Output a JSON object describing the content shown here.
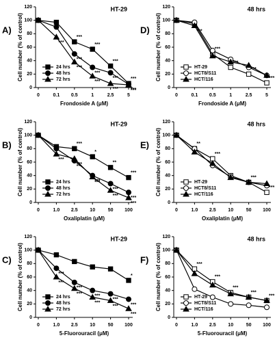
{
  "chart_data": [
    {
      "type": "line",
      "panel_label": "A)",
      "title": "HT-29",
      "x_label": "Frondoside A (μM)",
      "y_label": "Cell number (% of control)",
      "categories": [
        "0",
        "0.1",
        "0.5",
        "1",
        "2.5",
        "5"
      ],
      "ylim": [
        0,
        120
      ],
      "yticks": [
        0,
        20,
        40,
        60,
        80,
        100,
        120
      ],
      "legend": "lower left",
      "series": [
        {
          "name": "24 hrs",
          "color": "#000000",
          "marker": "square",
          "filled": true,
          "values": [
            100,
            97,
            68,
            57,
            32,
            6
          ],
          "significance": [
            null,
            null,
            "***",
            "***",
            "***",
            "***"
          ]
        },
        {
          "name": "48 hrs",
          "color": "#000000",
          "marker": "circle",
          "filled": true,
          "values": [
            100,
            90,
            50,
            30,
            22,
            5
          ],
          "significance": [
            null,
            null,
            "***",
            "***",
            "***",
            "***"
          ]
        },
        {
          "name": "72 hrs",
          "color": "#000000",
          "marker": "triangle",
          "filled": true,
          "values": [
            100,
            75,
            38,
            17,
            6,
            4
          ],
          "significance": [
            null,
            "***",
            "***",
            "***",
            "***",
            "***"
          ]
        }
      ]
    },
    {
      "type": "line",
      "panel_label": "D)",
      "title": "48 hrs",
      "x_label": "Frondoside A (μM)",
      "y_label": "Cell number (% of control)",
      "categories": [
        "0",
        "0.1",
        "0.5",
        "1",
        "2.5",
        "5"
      ],
      "ylim": [
        0,
        120
      ],
      "yticks": [
        0,
        20,
        40,
        60,
        80,
        100,
        120
      ],
      "legend": "lower left",
      "series": [
        {
          "name": "HT-29",
          "color": "#000000",
          "marker": "square",
          "filled": false,
          "values": [
            100,
            95,
            50,
            30,
            20,
            7
          ],
          "significance": [
            null,
            null,
            "***",
            "***",
            "***",
            "***"
          ]
        },
        {
          "name": "HCT8/S11",
          "color": "#000000",
          "marker": "circle",
          "filled": false,
          "values": [
            100,
            97,
            55,
            42,
            30,
            18
          ],
          "significance": [
            null,
            null,
            null,
            null,
            null,
            null
          ]
        },
        {
          "name": "HCT/116",
          "color": "#000000",
          "marker": "triangle",
          "filled": true,
          "values": [
            100,
            92,
            47,
            38,
            33,
            18
          ],
          "significance": [
            null,
            "***",
            null,
            null,
            null,
            null
          ]
        }
      ]
    },
    {
      "type": "line",
      "panel_label": "B)",
      "title": "HT-29",
      "x_label": "Oxaliplatin (μM)",
      "y_label": "Cell number (% of control)",
      "categories": [
        "0",
        "1.0",
        "2.5",
        "10",
        "50",
        "100"
      ],
      "ylim": [
        0,
        120
      ],
      "yticks": [
        0,
        20,
        40,
        60,
        80,
        100,
        120
      ],
      "legend": "lower left",
      "series": [
        {
          "name": "24 hrs",
          "color": "#000000",
          "marker": "square",
          "filled": true,
          "values": [
            100,
            83,
            80,
            68,
            52,
            37
          ],
          "significance": [
            null,
            null,
            "***",
            "*",
            "**",
            "***"
          ]
        },
        {
          "name": "48 hrs",
          "color": "#000000",
          "marker": "circle",
          "filled": true,
          "values": [
            100,
            80,
            62,
            40,
            28,
            15
          ],
          "significance": [
            null,
            null,
            "**",
            "***",
            "***",
            "***"
          ]
        },
        {
          "name": "72 hrs",
          "color": "#000000",
          "marker": "triangle",
          "filled": true,
          "values": [
            100,
            72,
            65,
            38,
            18,
            7
          ],
          "significance": [
            null,
            "***",
            "***",
            "***",
            "***",
            "***"
          ]
        }
      ]
    },
    {
      "type": "line",
      "panel_label": "E)",
      "title": "48 hrs",
      "x_label": "Oxaliplatin (μM)",
      "y_label": "Cell number (% of control)",
      "categories": [
        "0",
        "1.0",
        "2.5",
        "10",
        "50",
        "100"
      ],
      "ylim": [
        0,
        120
      ],
      "yticks": [
        0,
        20,
        40,
        60,
        80,
        100,
        120
      ],
      "legend": "lower left",
      "series": [
        {
          "name": "HT-29",
          "color": "#000000",
          "marker": "square",
          "filled": false,
          "values": [
            100,
            80,
            65,
            40,
            30,
            15
          ],
          "significance": [
            null,
            "**",
            "***",
            null,
            "***",
            "***"
          ]
        },
        {
          "name": "HCT8/S11",
          "color": "#000000",
          "marker": "circle",
          "filled": false,
          "values": [
            100,
            80,
            55,
            38,
            30,
            25
          ],
          "significance": [
            null,
            null,
            null,
            null,
            null,
            null
          ]
        },
        {
          "name": "HCT/116",
          "color": "#000000",
          "marker": "triangle",
          "filled": true,
          "values": [
            100,
            75,
            58,
            37,
            30,
            28
          ],
          "significance": [
            null,
            null,
            null,
            null,
            null,
            null
          ]
        }
      ]
    },
    {
      "type": "line",
      "panel_label": "C)",
      "title": "HT-29",
      "x_label": "5-Fluorouracil (μM)",
      "y_label": "Cell number (% of control)",
      "categories": [
        "0",
        "1.0",
        "2.5",
        "10",
        "50",
        "100"
      ],
      "ylim": [
        0,
        120
      ],
      "yticks": [
        0,
        20,
        40,
        60,
        80,
        100,
        120
      ],
      "legend": "lower left",
      "series": [
        {
          "name": "24 hrs",
          "color": "#000000",
          "marker": "square",
          "filled": true,
          "values": [
            100,
            93,
            83,
            75,
            72,
            55
          ],
          "significance": [
            null,
            null,
            null,
            null,
            null,
            "*"
          ]
        },
        {
          "name": "48 hrs",
          "color": "#000000",
          "marker": "circle",
          "filled": true,
          "values": [
            100,
            73,
            52,
            40,
            35,
            27
          ],
          "significance": [
            null,
            "***",
            "***",
            "***",
            "***",
            "***"
          ]
        },
        {
          "name": "72 hrs",
          "color": "#000000",
          "marker": "triangle",
          "filled": true,
          "values": [
            100,
            60,
            43,
            30,
            25,
            13
          ],
          "significance": [
            null,
            "***",
            "***",
            "***",
            "***",
            "***"
          ]
        }
      ]
    },
    {
      "type": "line",
      "panel_label": "F)",
      "title": "48 hrs",
      "x_label": "5-Fluorouracil (μM)",
      "y_label": "Cell number (% of control)",
      "categories": [
        "0",
        "1.0",
        "2.5",
        "10",
        "50",
        "100"
      ],
      "ylim": [
        0,
        120
      ],
      "yticks": [
        0,
        20,
        40,
        60,
        80,
        100,
        120
      ],
      "legend": "lower left",
      "series": [
        {
          "name": "HT-29",
          "color": "#000000",
          "marker": "square",
          "filled": false,
          "values": [
            100,
            72,
            53,
            37,
            30,
            25
          ],
          "significance": [
            null,
            "***",
            "***",
            "***",
            "***",
            "***"
          ]
        },
        {
          "name": "HCT8/S11",
          "color": "#000000",
          "marker": "circle",
          "filled": false,
          "values": [
            100,
            42,
            30,
            20,
            18,
            15
          ],
          "significance": [
            null,
            null,
            null,
            null,
            null,
            null
          ]
        },
        {
          "name": "HCT/116",
          "color": "#000000",
          "marker": "triangle",
          "filled": true,
          "values": [
            100,
            65,
            48,
            35,
            30,
            25
          ],
          "significance": [
            null,
            null,
            null,
            null,
            null,
            null
          ]
        }
      ]
    }
  ]
}
